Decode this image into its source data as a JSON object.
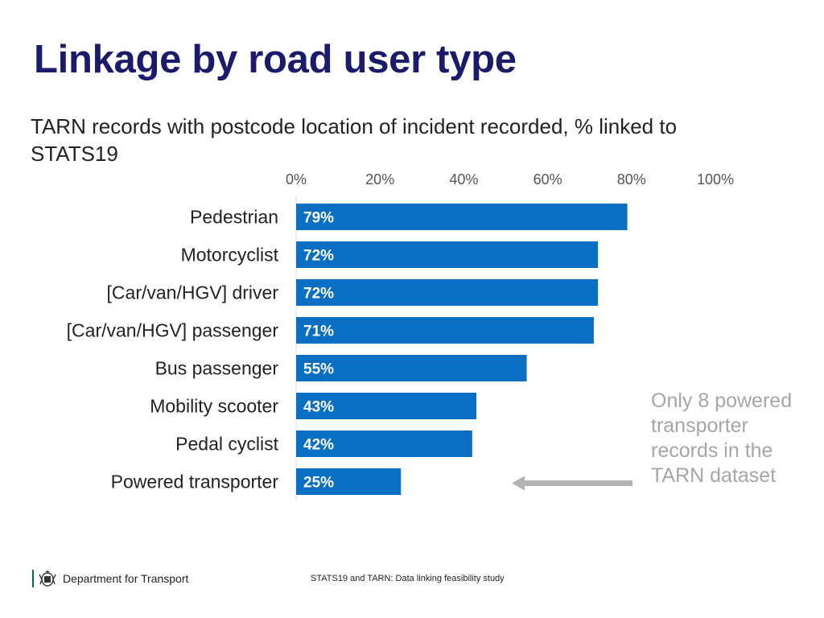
{
  "page": {
    "title": "Linkage by road user type",
    "subtitle": "TARN records with postcode location of incident recorded, % linked to STATS19",
    "note": "Only 8 powered transporter records in the TARN dataset",
    "footer": {
      "organisation": "Department for Transport",
      "study": "STATS19 and TARN: Data linking feasibility study"
    }
  },
  "colors": {
    "title": "#1c1a6b",
    "bar": "#0a6fc2",
    "bar_label": "#ffffff",
    "note": "#a6a6a6",
    "arrow": "#b3b3b3"
  },
  "chart_data": {
    "type": "bar",
    "orientation": "horizontal",
    "title": "TARN records with postcode location of incident recorded, % linked to STATS19",
    "xlabel": "",
    "ylabel": "",
    "xlim": [
      0,
      100
    ],
    "x_ticks": [
      0,
      20,
      40,
      60,
      80,
      100
    ],
    "x_tick_labels": [
      "0%",
      "20%",
      "40%",
      "60%",
      "80%",
      "100%"
    ],
    "x_axis_position": "top",
    "grid": false,
    "categories": [
      "Pedestrian",
      "Motorcyclist",
      "[Car/van/HGV] driver",
      "[Car/van/HGV] passenger",
      "Bus passenger",
      "Mobility scooter",
      "Pedal cyclist",
      "Powered transporter"
    ],
    "values": [
      79,
      72,
      72,
      71,
      55,
      43,
      42,
      25
    ],
    "value_labels": [
      "79%",
      "72%",
      "72%",
      "71%",
      "55%",
      "43%",
      "42%",
      "25%"
    ],
    "annotations": [
      {
        "text": "Only 8 powered transporter records in the TARN dataset",
        "points_to": "Powered transporter"
      }
    ]
  }
}
